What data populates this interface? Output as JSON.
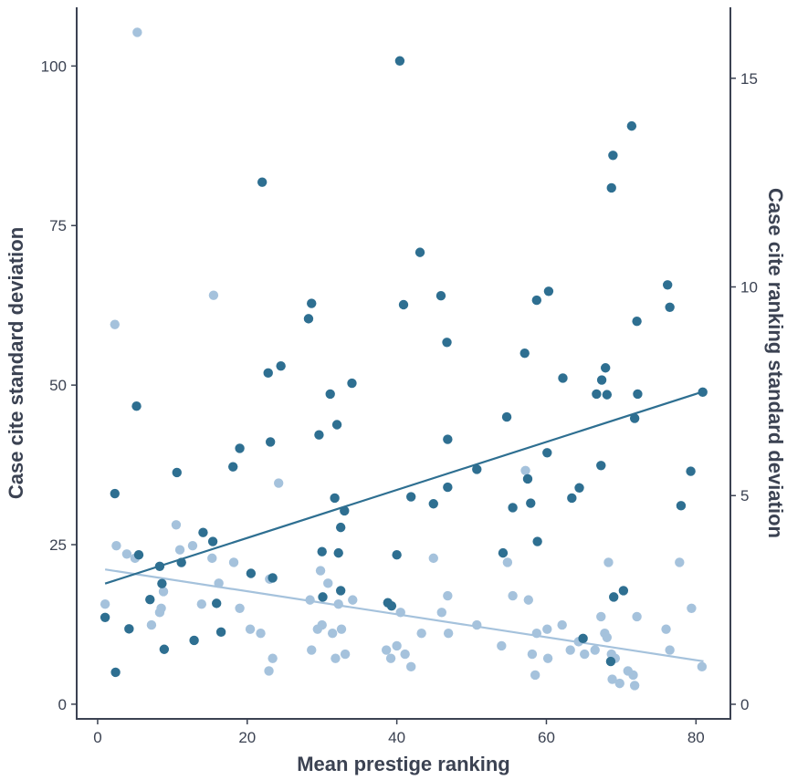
{
  "chart_data": {
    "type": "scatter",
    "title": "",
    "xlabel": "Mean prestige ranking",
    "ylabel": "Case cite standard deviation",
    "y2label": "Case cite ranking standard deviation",
    "xlim": [
      -2.8,
      84.6
    ],
    "ylim": [
      -2.3,
      109.2
    ],
    "y2lim": [
      -0.35,
      16.7
    ],
    "xticks": [
      0,
      20,
      40,
      60,
      80
    ],
    "yticks": [
      0,
      25,
      50,
      75,
      100
    ],
    "y2ticks": [
      0,
      5,
      10,
      15
    ],
    "grid": false,
    "series": [
      {
        "axis": "left",
        "color": "#2e6f91",
        "trendline": [
          [
            1,
            18.9
          ],
          [
            81,
            49.0
          ]
        ],
        "points": [
          [
            1,
            13.6
          ],
          [
            2.3,
            33
          ],
          [
            2.4,
            5
          ],
          [
            4.2,
            11.8
          ],
          [
            5.2,
            46.7
          ],
          [
            5.5,
            23.4
          ],
          [
            7,
            16.4
          ],
          [
            8.3,
            21.6
          ],
          [
            8.6,
            18.9
          ],
          [
            8.9,
            8.6
          ],
          [
            10.6,
            36.3
          ],
          [
            11.2,
            22.2
          ],
          [
            12.9,
            10
          ],
          [
            14.1,
            26.9
          ],
          [
            15.4,
            25.5
          ],
          [
            15.9,
            15.8
          ],
          [
            16.5,
            11.3
          ],
          [
            18.1,
            37.2
          ],
          [
            19,
            40.1
          ],
          [
            20.5,
            20.5
          ],
          [
            22,
            81.8
          ],
          [
            22.8,
            51.9
          ],
          [
            23.1,
            41.1
          ],
          [
            23.4,
            19.8
          ],
          [
            24.5,
            53
          ],
          [
            28.2,
            60.4
          ],
          [
            28.6,
            62.8
          ],
          [
            29.6,
            42.2
          ],
          [
            30,
            23.9
          ],
          [
            30.1,
            16.8
          ],
          [
            31.1,
            48.6
          ],
          [
            31.7,
            32.3
          ],
          [
            32,
            43.8
          ],
          [
            32.2,
            23.7
          ],
          [
            32.5,
            27.7
          ],
          [
            32.5,
            17.8
          ],
          [
            33,
            30.3
          ],
          [
            34,
            50.3
          ],
          [
            38.8,
            15.9
          ],
          [
            39.3,
            15.4
          ],
          [
            40,
            23.4
          ],
          [
            40.4,
            100.8
          ],
          [
            40.9,
            62.6
          ],
          [
            41.9,
            32.5
          ],
          [
            43.1,
            70.8
          ],
          [
            44.9,
            31.4
          ],
          [
            45.9,
            64
          ],
          [
            46.7,
            56.7
          ],
          [
            46.8,
            41.5
          ],
          [
            46.8,
            34
          ],
          [
            50.7,
            36.8
          ],
          [
            54.2,
            23.7
          ],
          [
            54.7,
            45
          ],
          [
            55.5,
            30.8
          ],
          [
            57.1,
            55
          ],
          [
            57.5,
            35.3
          ],
          [
            57.9,
            31.5
          ],
          [
            58.7,
            63.3
          ],
          [
            58.8,
            25.5
          ],
          [
            60.1,
            39.4
          ],
          [
            60.3,
            64.7
          ],
          [
            62.2,
            51.1
          ],
          [
            63.4,
            32.3
          ],
          [
            64.4,
            33.9
          ],
          [
            64.9,
            10.3
          ],
          [
            66.7,
            48.6
          ],
          [
            67.3,
            37.4
          ],
          [
            67.4,
            50.8
          ],
          [
            67.9,
            52.7
          ],
          [
            68.1,
            48.5
          ],
          [
            68.6,
            6.7
          ],
          [
            68.7,
            80.9
          ],
          [
            68.9,
            86
          ],
          [
            69,
            16.8
          ],
          [
            70.3,
            17.8
          ],
          [
            71.4,
            90.6
          ],
          [
            71.8,
            44.8
          ],
          [
            72.1,
            60
          ],
          [
            72.2,
            48.6
          ],
          [
            76.2,
            65.7
          ],
          [
            76.5,
            62.2
          ],
          [
            78,
            31.1
          ],
          [
            79.3,
            36.5
          ],
          [
            80.9,
            48.9
          ]
        ]
      },
      {
        "axis": "right",
        "color": "#a5c2dc",
        "trendline": [
          [
            1,
            3.23
          ],
          [
            81,
            1.03
          ]
        ],
        "points": [
          [
            1,
            2.4
          ],
          [
            2.3,
            9.1
          ],
          [
            2.5,
            3.8
          ],
          [
            3.9,
            3.6
          ],
          [
            5,
            3.5
          ],
          [
            5.3,
            16.1
          ],
          [
            7.2,
            1.9
          ],
          [
            8.3,
            2.2
          ],
          [
            8.5,
            2.3
          ],
          [
            8.8,
            2.7
          ],
          [
            10.5,
            4.3
          ],
          [
            11,
            3.7
          ],
          [
            12.7,
            3.8
          ],
          [
            13.9,
            2.4
          ],
          [
            15.3,
            3.5
          ],
          [
            15.5,
            9.8
          ],
          [
            16.2,
            2.9
          ],
          [
            18.2,
            3.4
          ],
          [
            19,
            2.3
          ],
          [
            20.4,
            1.8
          ],
          [
            21.8,
            1.7
          ],
          [
            22.9,
            0.8
          ],
          [
            23,
            3.0
          ],
          [
            23.4,
            1.1
          ],
          [
            24.2,
            5.3
          ],
          [
            28.4,
            2.5
          ],
          [
            28.6,
            1.3
          ],
          [
            29.4,
            1.8
          ],
          [
            29.8,
            3.2
          ],
          [
            30,
            1.9
          ],
          [
            30.8,
            2.9
          ],
          [
            31.4,
            1.7
          ],
          [
            31.8,
            1.1
          ],
          [
            32.2,
            2.4
          ],
          [
            32.6,
            1.8
          ],
          [
            33.1,
            1.2
          ],
          [
            34.1,
            2.5
          ],
          [
            38.6,
            1.3
          ],
          [
            39.2,
            1.1
          ],
          [
            40,
            1.4
          ],
          [
            40.5,
            2.2
          ],
          [
            41.1,
            1.2
          ],
          [
            41.9,
            0.9
          ],
          [
            43.3,
            1.7
          ],
          [
            44.9,
            3.5
          ],
          [
            46,
            2.2
          ],
          [
            46.8,
            2.6
          ],
          [
            46.9,
            1.7
          ],
          [
            50.7,
            1.9
          ],
          [
            54,
            1.4
          ],
          [
            54.8,
            3.4
          ],
          [
            55.5,
            2.6
          ],
          [
            57.2,
            5.6
          ],
          [
            57.6,
            2.5
          ],
          [
            58.1,
            1.2
          ],
          [
            58.7,
            1.7
          ],
          [
            58.5,
            0.7
          ],
          [
            60.1,
            1.8
          ],
          [
            60.2,
            1.1
          ],
          [
            62.1,
            1.9
          ],
          [
            63.2,
            1.3
          ],
          [
            64.3,
            1.5
          ],
          [
            65.1,
            1.2
          ],
          [
            66.5,
            1.3
          ],
          [
            67.3,
            2.1
          ],
          [
            67.8,
            1.7
          ],
          [
            68.1,
            1.6
          ],
          [
            68.3,
            3.4
          ],
          [
            68.7,
            1.2
          ],
          [
            68.8,
            0.6
          ],
          [
            69.2,
            1.1
          ],
          [
            69.8,
            0.5
          ],
          [
            70.9,
            0.8
          ],
          [
            71.6,
            0.7
          ],
          [
            71.8,
            0.45
          ],
          [
            72.1,
            2.1
          ],
          [
            76,
            1.8
          ],
          [
            76.5,
            1.3
          ],
          [
            77.8,
            3.4
          ],
          [
            79.4,
            2.3
          ],
          [
            80.8,
            0.9
          ]
        ]
      }
    ]
  }
}
